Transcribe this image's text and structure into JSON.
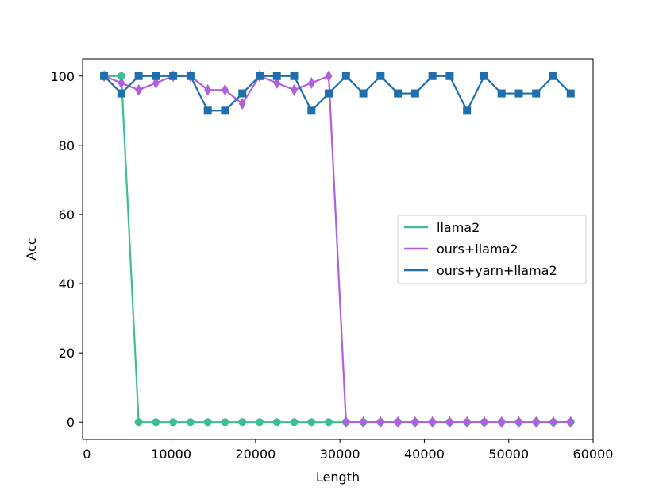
{
  "chart_data": {
    "type": "line",
    "title": "",
    "xlabel": "Length",
    "ylabel": "Acc",
    "xlim": [
      -500,
      60000
    ],
    "ylim": [
      -5,
      105
    ],
    "xticks": [
      0,
      10000,
      20000,
      30000,
      40000,
      50000,
      60000
    ],
    "yticks": [
      0,
      20,
      40,
      60,
      80,
      100
    ],
    "grid": false,
    "legend_position": "center-right",
    "x": [
      2048,
      4096,
      6144,
      8192,
      10240,
      12288,
      14336,
      16384,
      18432,
      20480,
      22528,
      24576,
      26624,
      28672,
      30720,
      32768,
      34816,
      36864,
      38912,
      40960,
      43008,
      45056,
      47104,
      49152,
      51200,
      53248,
      55296,
      57344
    ],
    "series": [
      {
        "name": "llama2",
        "color": "#3dbd94",
        "marker": "circle",
        "x": [
          2048,
          4096,
          6144,
          8192,
          10240,
          12288,
          14336,
          16384,
          18432,
          20480,
          22528,
          24576,
          26624,
          28672,
          30720,
          32768,
          34816,
          36864,
          38912,
          40960,
          43008,
          45056,
          47104,
          49152,
          51200,
          53248,
          55296,
          57344
        ],
        "values": [
          100,
          100,
          0,
          0,
          0,
          0,
          0,
          0,
          0,
          0,
          0,
          0,
          0,
          0,
          0,
          0,
          0,
          0,
          0,
          0,
          0,
          0,
          0,
          0,
          0,
          0,
          0,
          0
        ]
      },
      {
        "name": "ours+llama2",
        "color": "#b05fe0",
        "marker": "thin_diamond",
        "x": [
          2048,
          4096,
          6144,
          8192,
          10240,
          12288,
          14336,
          16384,
          18432,
          20480,
          22528,
          24576,
          26624,
          28672,
          30720,
          32768,
          34816,
          36864,
          38912,
          40960,
          43008,
          45056,
          47104,
          49152,
          51200,
          53248,
          55296,
          57344
        ],
        "values": [
          100,
          98,
          96,
          98,
          100,
          100,
          96,
          96,
          92,
          100,
          98,
          96,
          98,
          100,
          0,
          0,
          0,
          0,
          0,
          0,
          0,
          0,
          0,
          0,
          0,
          0,
          0,
          0
        ]
      },
      {
        "name": "ours+yarn+llama2",
        "color": "#1f6fae",
        "marker": "square",
        "x": [
          2048,
          4096,
          6144,
          8192,
          10240,
          12288,
          14336,
          16384,
          18432,
          20480,
          22528,
          24576,
          26624,
          28672,
          30720,
          32768,
          34816,
          36864,
          38912,
          40960,
          43008,
          45056,
          47104,
          49152,
          51200,
          53248,
          55296,
          57344
        ],
        "values": [
          100,
          95,
          100,
          100,
          100,
          100,
          90,
          90,
          95,
          100,
          100,
          100,
          90,
          95,
          100,
          95,
          100,
          95,
          95,
          100,
          100,
          90,
          100,
          95,
          95,
          95,
          100,
          95
        ]
      }
    ]
  }
}
